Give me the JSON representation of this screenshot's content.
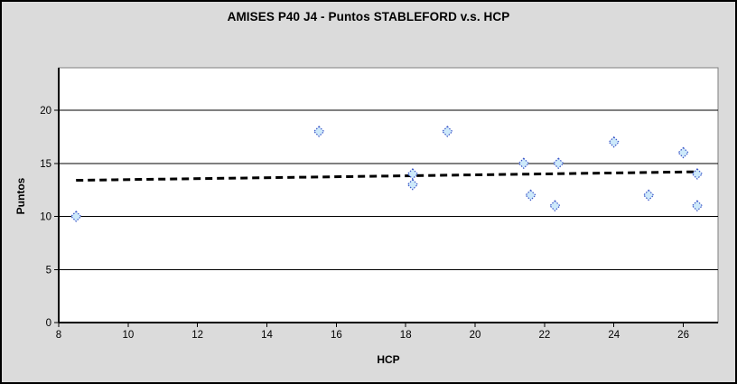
{
  "window": {
    "background_color": "#DBDBDB",
    "border_color": "#000000"
  },
  "chart_data": {
    "type": "scatter",
    "title": "AMISES P40 J4 - Puntos STABLEFORD v.s. HCP",
    "xlabel": "HCP",
    "ylabel": "Puntos",
    "xlim": [
      8,
      27
    ],
    "ylim": [
      0,
      24
    ],
    "x_ticks": [
      8,
      10,
      12,
      14,
      16,
      18,
      20,
      22,
      24,
      26
    ],
    "y_ticks": [
      0,
      5,
      10,
      15,
      20
    ],
    "grid": "horizontal-only",
    "legend": "none",
    "plot_bg": "#FFFFFF",
    "gridline_color": "#000000",
    "plot_border_color": "#7F7F7F",
    "series": [
      {
        "name": "Puntos STABLEFORD",
        "marker": "diamond",
        "marker_fill": "#CDE9FA",
        "marker_stroke": "#3A55C8",
        "points": [
          [
            8.5,
            10
          ],
          [
            15.5,
            18
          ],
          [
            18.2,
            13
          ],
          [
            18.2,
            14
          ],
          [
            19.2,
            18
          ],
          [
            21.4,
            15
          ],
          [
            21.6,
            12
          ],
          [
            22.3,
            11
          ],
          [
            22.4,
            15
          ],
          [
            24,
            17
          ],
          [
            25,
            12
          ],
          [
            26,
            16
          ],
          [
            26.4,
            11
          ],
          [
            26.4,
            14
          ]
        ]
      }
    ],
    "trendline": {
      "style": "dashed",
      "color": "#000000",
      "x1": 8.5,
      "y1": 13.4,
      "x2": 26.4,
      "y2": 14.2
    }
  }
}
